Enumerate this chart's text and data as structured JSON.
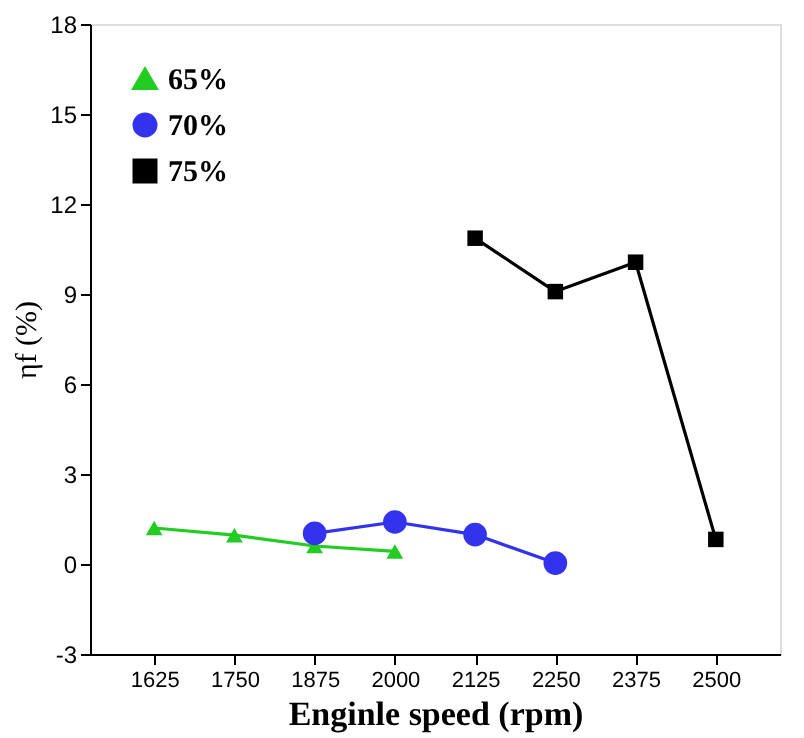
{
  "chart_data": {
    "type": "line",
    "xlabel": "Enginle speed (rpm)",
    "ylabel": "ηf (%)",
    "xlim": [
      1525,
      2600
    ],
    "xticks": [
      1625,
      1750,
      1875,
      2000,
      2125,
      2250,
      2375,
      2500
    ],
    "ylim": [
      -3,
      18
    ],
    "yticks": [
      -3,
      0,
      3,
      6,
      9,
      12,
      15,
      18
    ],
    "grid": false,
    "legend": "top left",
    "series": [
      {
        "name": "65%",
        "color": "#22cc22",
        "marker": "triangle",
        "x": [
          1625,
          1750,
          1875,
          2000
        ],
        "values": [
          1.2,
          0.96,
          0.6,
          0.42
        ]
      },
      {
        "name": "70%",
        "color": "#3333ee",
        "marker": "circle",
        "x": [
          1875,
          2000,
          2125,
          2250
        ],
        "values": [
          1.02,
          1.4,
          0.98,
          0.03
        ]
      },
      {
        "name": "75%",
        "color": "#000000",
        "marker": "square",
        "x": [
          2125,
          2250,
          2375,
          2500
        ],
        "values": [
          10.86,
          9.08,
          10.06,
          0.82
        ]
      }
    ]
  }
}
